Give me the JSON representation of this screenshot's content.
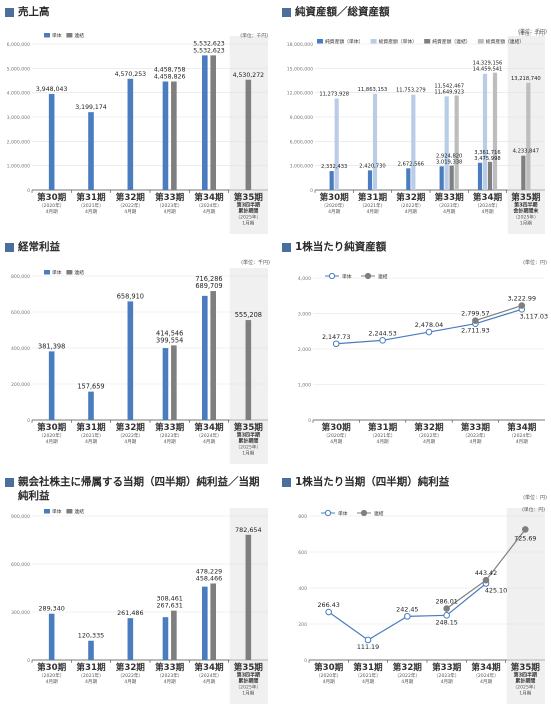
{
  "colors": {
    "tan": "#4a7cc0",
    "ren": "#7f7f7f",
    "tan_light": "#b9cde6",
    "ren_light": "#bdbdbd",
    "grid": "#e2e2e2",
    "axis": "#4a4a4a",
    "band": "#e4e4e4",
    "title_square": "#4a6f9c"
  },
  "legend": {
    "tan": "単体",
    "ren": "連結",
    "tan_assets": "純資産額（単体）",
    "total_tan": "総資産額（単体）",
    "ren_assets": "純資産額（連結）",
    "total_ren": "総資産額（連結）"
  },
  "periods": [
    {
      "num": "第30期",
      "year": "（2020年）",
      "month": "4月期"
    },
    {
      "num": "第31期",
      "year": "（2021年）",
      "month": "4月期"
    },
    {
      "num": "第32期",
      "year": "（2022年）",
      "month": "4月期"
    },
    {
      "num": "第33期",
      "year": "（2023年）",
      "month": "4月期"
    },
    {
      "num": "第34期",
      "year": "（2024年）",
      "month": "4月期"
    }
  ],
  "period35": {
    "num": "第35期",
    "q3": "第3四半期",
    "cum": "累計期間",
    "end": "会計期間末",
    "year": "（2025年）",
    "month": "1月期"
  },
  "chart_data": [
    {
      "id": "sales",
      "type": "bar",
      "title": "売上高",
      "unit": "(単位：千円)",
      "ylim": [
        0,
        6000000
      ],
      "yticks": [
        "0",
        "1,000,000",
        "2,000,000",
        "3,000,000",
        "4,000,000",
        "5,000,000",
        "6,000,000"
      ],
      "categories": [
        "第30期",
        "第31期",
        "第32期",
        "第33期",
        "第34期",
        "第35期"
      ],
      "series": [
        {
          "name": "単体",
          "values": [
            3948043,
            3199174,
            4570253,
            4458826,
            5532623,
            null
          ],
          "labels": [
            "3,948,043",
            "3,199,174",
            "4,570,253",
            "4,458,826",
            "5,532,623",
            ""
          ]
        },
        {
          "name": "連結",
          "values": [
            null,
            null,
            null,
            4458758,
            5532623,
            4530272
          ],
          "labels": [
            "",
            "",
            "",
            "4,458,758",
            "5,532,623",
            "4,530,272"
          ]
        }
      ]
    },
    {
      "id": "assets",
      "type": "bar",
      "title": "純資産額／総資産額",
      "unit": "(単位：千円)",
      "ylim": [
        0,
        18000000
      ],
      "yticks": [
        "0",
        "3,000,000",
        "6,000,000",
        "9,000,000",
        "12,000,000",
        "15,000,000",
        "18,000,000"
      ],
      "categories": [
        "第30期",
        "第31期",
        "第32期",
        "第33期",
        "第34期",
        "第35期"
      ],
      "series": [
        {
          "name": "純資産額（単体）",
          "values": [
            2332433,
            2420730,
            2672566,
            2924820,
            3361716,
            null
          ],
          "labels": [
            "2,332,433",
            "2,420,730",
            "2,672,566",
            "2,924,820",
            "3,361,716",
            ""
          ]
        },
        {
          "name": "総資産額（単体）",
          "values": [
            11273928,
            11863153,
            11753279,
            11542467,
            14329156,
            null
          ],
          "labels": [
            "11,273,928",
            "11,863,153",
            "11,753,279",
            "11,542,467",
            "14,329,156",
            ""
          ]
        },
        {
          "name": "純資産額（連結）",
          "values": [
            null,
            null,
            null,
            3019338,
            3475998,
            4233847
          ],
          "labels": [
            "",
            "",
            "",
            "3,019,338",
            "3,475,998",
            "4,233,847"
          ]
        },
        {
          "name": "総資産額（連結）",
          "values": [
            null,
            null,
            null,
            11649923,
            14459541,
            13218740
          ],
          "labels": [
            "",
            "",
            "",
            "11,649,923",
            "14,459,541",
            "13,218,740"
          ]
        }
      ]
    },
    {
      "id": "ordinary",
      "type": "bar",
      "title": "経常利益",
      "unit": "(単位：千円)",
      "ylim": [
        0,
        800000
      ],
      "yticks": [
        "0",
        "200,000",
        "400,000",
        "600,000",
        "800,000"
      ],
      "categories": [
        "第30期",
        "第31期",
        "第32期",
        "第33期",
        "第34期",
        "第35期"
      ],
      "series": [
        {
          "name": "単体",
          "values": [
            381398,
            157659,
            658910,
            399554,
            689709,
            null
          ],
          "labels": [
            "381,398",
            "157,659",
            "658,910",
            "399,554",
            "689,709",
            ""
          ]
        },
        {
          "name": "連結",
          "values": [
            null,
            null,
            null,
            414546,
            716286,
            555208
          ],
          "labels": [
            "",
            "",
            "",
            "414,546",
            "716,286",
            "555,208"
          ]
        }
      ]
    },
    {
      "id": "bps",
      "type": "line",
      "title": "1株当たり純資産額",
      "unit": "(単位：円)",
      "ylim": [
        0,
        4000
      ],
      "yticks": [
        "0",
        "1,000",
        "2,000",
        "3,000",
        "4,000"
      ],
      "categories": [
        "第30期",
        "第31期",
        "第32期",
        "第33期",
        "第34期"
      ],
      "series": [
        {
          "name": "単体",
          "values": [
            2147.73,
            2244.53,
            2478.04,
            2711.93,
            3117.03
          ],
          "labels": [
            "2,147.73",
            "2,244.53",
            "2,478.04",
            "2,711.93",
            "3,117.03"
          ]
        },
        {
          "name": "連結",
          "values": [
            null,
            null,
            null,
            2799.57,
            3222.99
          ],
          "labels": [
            "",
            "",
            "",
            "2,799.57",
            "3,222.99"
          ]
        }
      ]
    },
    {
      "id": "netincome",
      "type": "bar",
      "title": "親会社株主に帰属する当期（四半期）純利益／当期純利益",
      "unit": "(単位：千円)",
      "ylim": [
        0,
        900000
      ],
      "yticks": [
        "0",
        "300,000",
        "600,000",
        "900,000"
      ],
      "categories": [
        "第30期",
        "第31期",
        "第32期",
        "第33期",
        "第34期",
        "第35期"
      ],
      "series": [
        {
          "name": "単体",
          "values": [
            289340,
            120335,
            261486,
            267631,
            458466,
            null
          ],
          "labels": [
            "289,340",
            "120,335",
            "261,486",
            "267,631",
            "458,466",
            ""
          ]
        },
        {
          "name": "連結",
          "values": [
            null,
            null,
            null,
            308461,
            478229,
            782654
          ],
          "labels": [
            "",
            "",
            "",
            "308,461",
            "478,229",
            "782,654"
          ]
        }
      ]
    },
    {
      "id": "eps",
      "type": "line",
      "title": "1株当たり当期（四半期）純利益",
      "unit": "(単位：円)",
      "ylim": [
        0,
        800
      ],
      "yticks": [
        "0",
        "200",
        "400",
        "600",
        "800"
      ],
      "categories": [
        "第30期",
        "第31期",
        "第32期",
        "第33期",
        "第34期",
        "第35期"
      ],
      "series": [
        {
          "name": "単体",
          "values": [
            266.43,
            111.19,
            242.45,
            248.15,
            425.1,
            null
          ],
          "labels": [
            "266.43",
            "111.19",
            "242.45",
            "248.15",
            "425.10",
            ""
          ]
        },
        {
          "name": "連結",
          "values": [
            null,
            null,
            null,
            286.01,
            443.42,
            725.69
          ],
          "labels": [
            "",
            "",
            "",
            "286.01",
            "443.42",
            "725.69"
          ]
        }
      ]
    }
  ]
}
